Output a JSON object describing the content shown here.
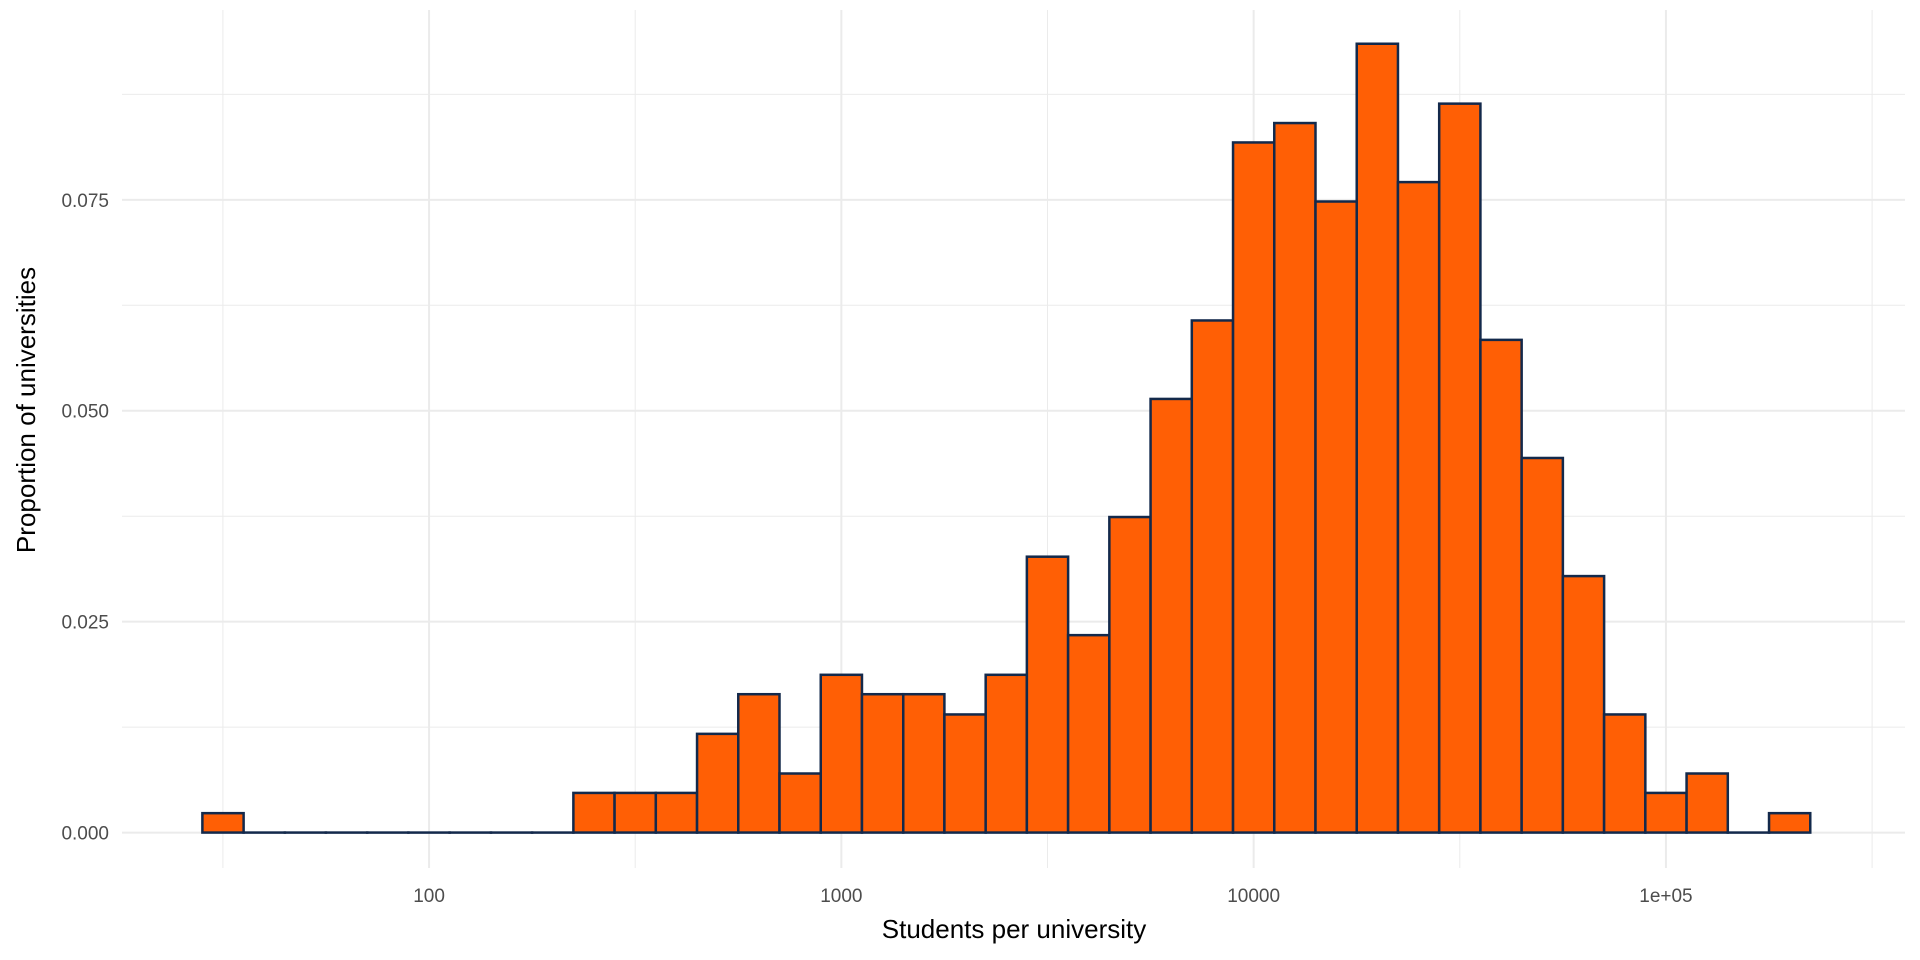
{
  "chart_data": {
    "type": "bar",
    "xlabel": "Students per university",
    "ylabel": "Proportion of universities",
    "x_scale": "log10",
    "xlim": [
      18,
      380000
    ],
    "ylim": [
      -0.0042,
      0.0975
    ],
    "x_ticks": [
      {
        "value": 100,
        "label": "100"
      },
      {
        "value": 1000,
        "label": "1000"
      },
      {
        "value": 10000,
        "label": "10000"
      },
      {
        "value": 100000,
        "label": "1e+05"
      }
    ],
    "y_ticks": [
      {
        "value": 0.0,
        "label": "0.000"
      },
      {
        "value": 0.025,
        "label": "0.025"
      },
      {
        "value": 0.05,
        "label": "0.050"
      },
      {
        "value": 0.075,
        "label": "0.075"
      }
    ],
    "grid": true,
    "bin_edges": [
      28.2,
      35.5,
      44.7,
      56.2,
      70.8,
      89.1,
      112.2,
      141.3,
      177.8,
      223.9,
      281.8,
      354.8,
      446.7,
      562.3,
      707.9,
      891.3,
      1122,
      1413,
      1778,
      2239,
      2818,
      3548,
      4467,
      5623,
      7079,
      8913,
      11220,
      14125,
      17783,
      22387,
      28184,
      35481,
      44668,
      56234,
      70795,
      89125,
      112202,
      141254,
      177828,
      223872
    ],
    "values": [
      0.0023,
      0,
      0,
      0,
      0,
      0,
      0,
      0,
      0,
      0.0047,
      0.0047,
      0.0047,
      0.0117,
      0.0164,
      0.007,
      0.0187,
      0.0164,
      0.0164,
      0.014,
      0.0187,
      0.0327,
      0.0234,
      0.0374,
      0.0514,
      0.0607,
      0.0818,
      0.0841,
      0.0748,
      0.0935,
      0.0771,
      0.0864,
      0.0584,
      0.0444,
      0.0304,
      0.014,
      0.0047,
      0.007,
      0,
      0.0023
    ],
    "fill_color": "#ff5f05",
    "stroke_color": "#13294b",
    "grid_color": "#ebebeb"
  }
}
